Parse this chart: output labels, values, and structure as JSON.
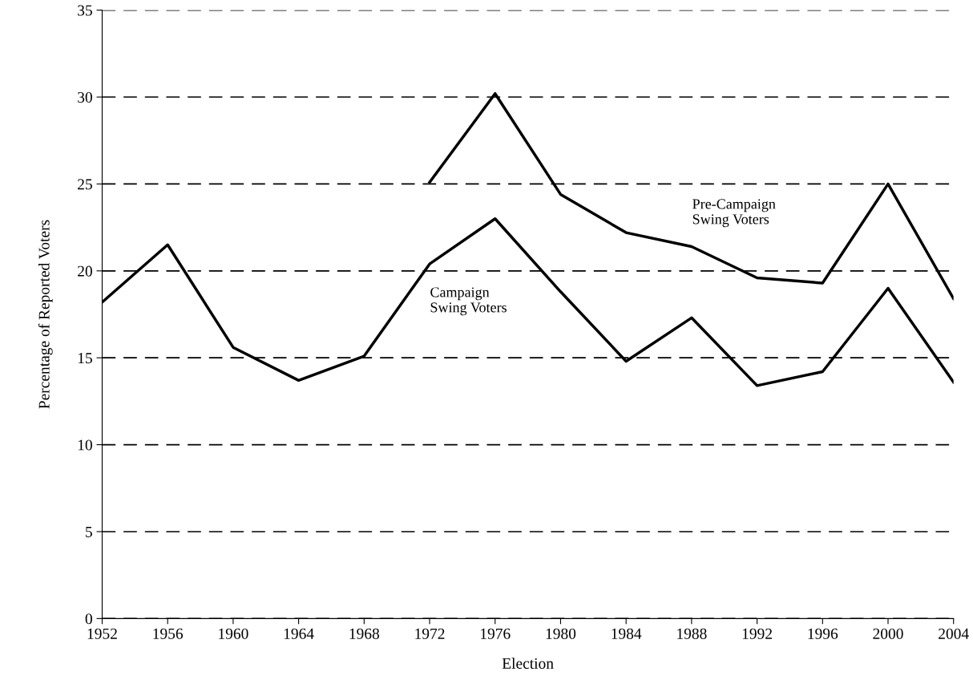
{
  "chart_data": {
    "type": "line",
    "xlabel": "Election",
    "ylabel": "Percentage of Reported Voters",
    "x": [
      1952,
      1956,
      1960,
      1964,
      1968,
      1972,
      1976,
      1980,
      1984,
      1988,
      1992,
      1996,
      2000,
      2004
    ],
    "series": [
      {
        "name": "Campaign\nSwing Voters",
        "color": "#000000",
        "values": [
          18.2,
          21.5,
          15.6,
          13.7,
          15.1,
          20.4,
          23.0,
          18.8,
          14.8,
          17.3,
          13.4,
          14.2,
          19.0,
          13.6
        ]
      },
      {
        "name": "Pre-Campaign\nSwing Voters",
        "color": "#000000",
        "values": [
          null,
          null,
          null,
          null,
          null,
          25.1,
          30.2,
          24.4,
          22.2,
          21.4,
          19.6,
          19.3,
          25.0,
          18.4
        ]
      }
    ],
    "xlim": [
      1952,
      2004
    ],
    "xticks": [
      1952,
      1956,
      1960,
      1964,
      1968,
      1972,
      1976,
      1980,
      1984,
      1988,
      1992,
      1996,
      2000,
      2004
    ],
    "ylim": [
      0,
      35
    ],
    "yticks": [
      0,
      5,
      10,
      15,
      20,
      25,
      30,
      35
    ],
    "grid": "y",
    "marker": "none",
    "line_style": "solid",
    "legend": false
  }
}
